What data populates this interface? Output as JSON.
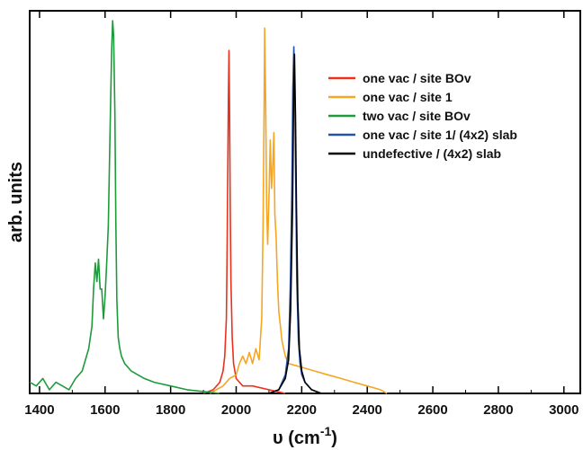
{
  "chart_data": {
    "type": "line",
    "title": "",
    "xlabel": "υ (cm",
    "xlabel_sup": "-1",
    "xlabel_close": ")",
    "ylabel": "arb. units",
    "xlim": [
      1370,
      3050
    ],
    "ylim": [
      0,
      1
    ],
    "x_ticks": [
      1400,
      1600,
      1800,
      2000,
      2200,
      2400,
      2600,
      2800,
      3000
    ],
    "grid": false,
    "legend_position": "top-right",
    "series": [
      {
        "name": "one vac / site BOv",
        "color": "#e8321e",
        "x": [
          1900,
          1930,
          1950,
          1960,
          1965,
          1970,
          1972,
          1974,
          1976,
          1978,
          1980,
          1982,
          1984,
          1988,
          1992,
          2000,
          2020,
          2050,
          2100,
          2150
        ],
        "y": [
          0.0,
          0.01,
          0.03,
          0.06,
          0.1,
          0.2,
          0.35,
          0.55,
          0.78,
          0.92,
          0.75,
          0.5,
          0.3,
          0.15,
          0.08,
          0.04,
          0.02,
          0.02,
          0.01,
          0.0
        ]
      },
      {
        "name": "one vac / site 1",
        "color": "#f5a623",
        "x": [
          1920,
          1960,
          1980,
          2000,
          2010,
          2020,
          2030,
          2040,
          2050,
          2060,
          2070,
          2078,
          2082,
          2085,
          2087,
          2090,
          2093,
          2096,
          2100,
          2104,
          2108,
          2112,
          2115,
          2118,
          2122,
          2126,
          2130,
          2140,
          2150,
          2160,
          2200,
          2240,
          2280,
          2320,
          2360,
          2400,
          2440,
          2460
        ],
        "y": [
          0.0,
          0.02,
          0.04,
          0.05,
          0.08,
          0.1,
          0.08,
          0.11,
          0.08,
          0.12,
          0.09,
          0.2,
          0.45,
          0.75,
          0.98,
          0.78,
          0.5,
          0.4,
          0.52,
          0.68,
          0.55,
          0.62,
          0.7,
          0.48,
          0.42,
          0.3,
          0.22,
          0.14,
          0.1,
          0.08,
          0.07,
          0.06,
          0.05,
          0.04,
          0.03,
          0.02,
          0.01,
          0.0
        ]
      },
      {
        "name": "two vac / site BOv",
        "color": "#1e9a3c",
        "x": [
          1370,
          1390,
          1410,
          1430,
          1450,
          1470,
          1490,
          1510,
          1530,
          1550,
          1560,
          1565,
          1570,
          1575,
          1580,
          1585,
          1590,
          1595,
          1600,
          1605,
          1610,
          1615,
          1620,
          1623,
          1626,
          1630,
          1633,
          1636,
          1640,
          1645,
          1650,
          1660,
          1680,
          1700,
          1720,
          1750,
          1800,
          1850,
          1900,
          1950
        ],
        "y": [
          0.03,
          0.02,
          0.04,
          0.01,
          0.03,
          0.02,
          0.01,
          0.04,
          0.06,
          0.12,
          0.18,
          0.28,
          0.35,
          0.3,
          0.36,
          0.28,
          0.28,
          0.2,
          0.26,
          0.35,
          0.45,
          0.7,
          0.92,
          1.0,
          0.96,
          0.75,
          0.45,
          0.25,
          0.15,
          0.12,
          0.1,
          0.08,
          0.06,
          0.05,
          0.04,
          0.03,
          0.02,
          0.01,
          0.005,
          0.0
        ]
      },
      {
        "name": "one vac / site 1/ (4x2) slab",
        "color": "#2652a8",
        "x": [
          2100,
          2130,
          2150,
          2160,
          2165,
          2170,
          2173,
          2176,
          2179,
          2182,
          2185,
          2190,
          2195,
          2200,
          2210,
          2230,
          2260
        ],
        "y": [
          0.0,
          0.01,
          0.05,
          0.12,
          0.28,
          0.55,
          0.82,
          0.93,
          0.8,
          0.55,
          0.3,
          0.14,
          0.08,
          0.05,
          0.03,
          0.01,
          0.0
        ]
      },
      {
        "name": "undefective / (4x2) slab",
        "color": "#000000",
        "x": [
          2100,
          2130,
          2150,
          2160,
          2166,
          2172,
          2175,
          2178,
          2181,
          2184,
          2188,
          2193,
          2200,
          2210,
          2230,
          2260
        ],
        "y": [
          0.0,
          0.01,
          0.04,
          0.09,
          0.22,
          0.5,
          0.78,
          0.91,
          0.75,
          0.5,
          0.25,
          0.12,
          0.06,
          0.03,
          0.01,
          0.0
        ]
      }
    ]
  }
}
